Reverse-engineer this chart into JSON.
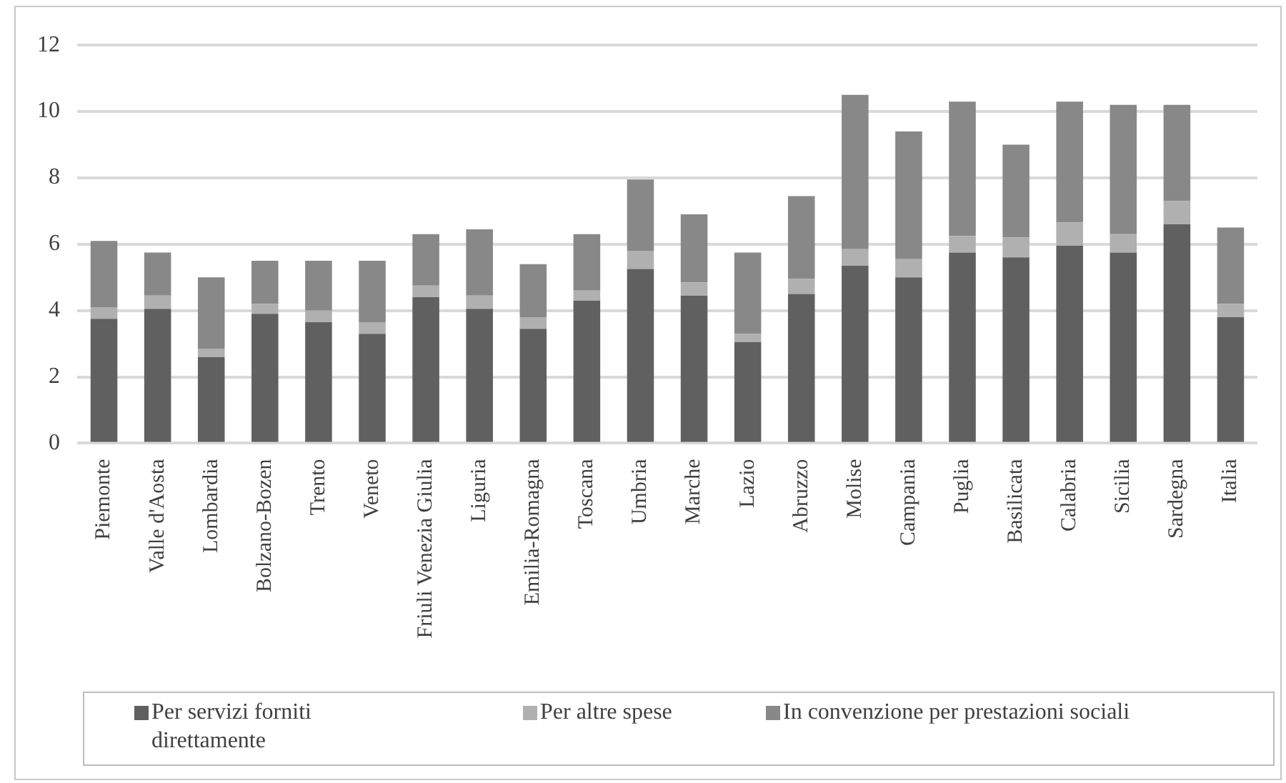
{
  "chart_data": {
    "type": "bar",
    "stacked": true,
    "categories": [
      "Piemonte",
      "Valle d'Aosta",
      "Lombardia",
      "Bolzano-Bozen",
      "Trento",
      "Veneto",
      "Friuli Venezia Giulia",
      "Liguria",
      "Emilia-Romagna",
      "Toscana",
      "Umbria",
      "Marche",
      "Lazio",
      "Abruzzo",
      "Molise",
      "Campania",
      "Puglia",
      "Basilicata",
      "Calabria",
      "Sicilia",
      "Sardegna",
      "Italia"
    ],
    "series": [
      {
        "name": "Per servizi forniti direttamente",
        "color": "#606060",
        "values": [
          3.75,
          4.05,
          2.6,
          3.9,
          3.65,
          3.3,
          4.4,
          4.05,
          3.45,
          4.3,
          5.25,
          4.45,
          3.05,
          4.5,
          5.35,
          5.0,
          5.75,
          5.6,
          5.95,
          5.75,
          6.6,
          3.8
        ]
      },
      {
        "name": "Per altre spese",
        "color": "#b0b0b0",
        "values": [
          0.35,
          0.4,
          0.25,
          0.3,
          0.35,
          0.35,
          0.35,
          0.4,
          0.35,
          0.3,
          0.55,
          0.4,
          0.25,
          0.45,
          0.5,
          0.55,
          0.5,
          0.6,
          0.7,
          0.55,
          0.7,
          0.4
        ]
      },
      {
        "name": "In convenzione per prestazioni sociali",
        "color": "#888888",
        "values": [
          2.0,
          1.3,
          2.15,
          1.3,
          1.5,
          1.85,
          1.55,
          2.0,
          1.6,
          1.7,
          2.15,
          2.05,
          2.45,
          2.5,
          4.65,
          3.85,
          4.05,
          2.8,
          3.65,
          3.9,
          2.9,
          2.3
        ]
      }
    ],
    "ylim": [
      0,
      12
    ],
    "yticks": [
      0,
      2,
      4,
      6,
      8,
      10,
      12
    ],
    "grid": "y",
    "legend": "bottom"
  }
}
